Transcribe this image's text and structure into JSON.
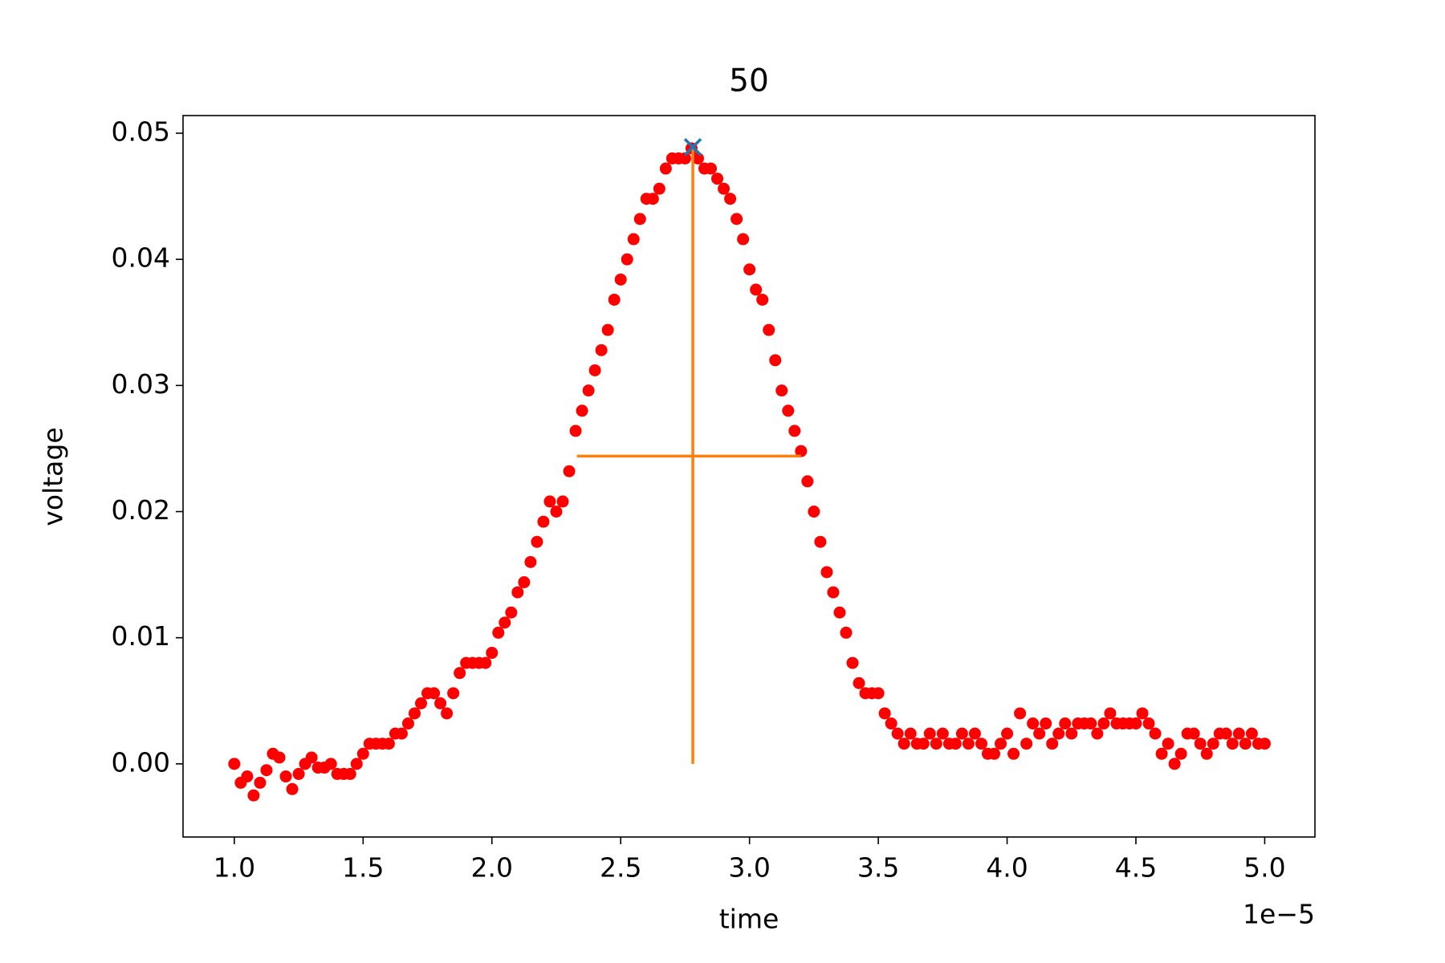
{
  "chart_data": {
    "type": "scatter",
    "title": "50",
    "x_label": "time",
    "y_label": "voltage",
    "x_offset_label": "1e−5",
    "color": "#ff0000",
    "x": [
      1.0,
      1.025,
      1.05,
      1.075,
      1.1,
      1.125,
      1.15,
      1.175,
      1.2,
      1.225,
      1.25,
      1.275,
      1.3,
      1.325,
      1.35,
      1.375,
      1.4,
      1.425,
      1.45,
      1.475,
      1.5,
      1.525,
      1.55,
      1.575,
      1.6,
      1.625,
      1.65,
      1.675,
      1.7,
      1.725,
      1.75,
      1.775,
      1.8,
      1.825,
      1.85,
      1.875,
      1.9,
      1.925,
      1.95,
      1.975,
      2.0,
      2.025,
      2.05,
      2.075,
      2.1,
      2.125,
      2.15,
      2.175,
      2.2,
      2.225,
      2.25,
      2.275,
      2.3,
      2.325,
      2.35,
      2.375,
      2.4,
      2.425,
      2.45,
      2.475,
      2.5,
      2.525,
      2.55,
      2.575,
      2.6,
      2.625,
      2.65,
      2.675,
      2.7,
      2.725,
      2.75,
      2.775,
      2.8,
      2.825,
      2.85,
      2.875,
      2.9,
      2.925,
      2.95,
      2.975,
      3.0,
      3.025,
      3.05,
      3.075,
      3.1,
      3.125,
      3.15,
      3.175,
      3.2,
      3.225,
      3.25,
      3.275,
      3.3,
      3.325,
      3.35,
      3.375,
      3.4,
      3.425,
      3.45,
      3.475,
      3.5,
      3.525,
      3.55,
      3.575,
      3.6,
      3.625,
      3.65,
      3.675,
      3.7,
      3.725,
      3.75,
      3.775,
      3.8,
      3.825,
      3.85,
      3.875,
      3.9,
      3.925,
      3.95,
      3.975,
      4.0,
      4.025,
      4.05,
      4.075,
      4.1,
      4.125,
      4.15,
      4.175,
      4.2,
      4.225,
      4.25,
      4.275,
      4.3,
      4.325,
      4.35,
      4.375,
      4.4,
      4.425,
      4.45,
      4.475,
      4.5,
      4.525,
      4.55,
      4.575,
      4.6,
      4.625,
      4.65,
      4.675,
      4.7,
      4.725,
      4.75,
      4.775,
      4.8,
      4.825,
      4.85,
      4.875,
      4.9,
      4.925,
      4.95,
      4.975,
      5.0
    ],
    "values": [
      0,
      -0.0015,
      -0.001,
      -0.0025,
      -0.0015,
      -0.0005,
      0.0008,
      0.0005,
      -0.001,
      -0.002,
      -0.0008,
      0,
      0.0005,
      -0.0003,
      -0.0003,
      0,
      -0.0008,
      -0.0008,
      -0.0008,
      0,
      0.0008,
      0.0016,
      0.0016,
      0.0016,
      0.0016,
      0.0024,
      0.0024,
      0.0032,
      0.004,
      0.0048,
      0.0056,
      0.0056,
      0.0048,
      0.004,
      0.0056,
      0.0072,
      0.008,
      0.008,
      0.008,
      0.008,
      0.0088,
      0.0104,
      0.0112,
      0.012,
      0.0136,
      0.0144,
      0.016,
      0.0176,
      0.0192,
      0.0208,
      0.02,
      0.0208,
      0.0232,
      0.0264,
      0.028,
      0.0296,
      0.0312,
      0.0328,
      0.0344,
      0.0368,
      0.0384,
      0.04,
      0.0416,
      0.0432,
      0.0448,
      0.0448,
      0.0456,
      0.0472,
      0.048,
      0.048,
      0.048,
      0.0488,
      0.048,
      0.0472,
      0.0472,
      0.0464,
      0.0456,
      0.0448,
      0.0432,
      0.0416,
      0.0392,
      0.0376,
      0.0368,
      0.0344,
      0.032,
      0.0296,
      0.028,
      0.0264,
      0.0248,
      0.0224,
      0.02,
      0.0176,
      0.0152,
      0.0136,
      0.012,
      0.0104,
      0.008,
      0.0064,
      0.0056,
      0.0056,
      0.0056,
      0.004,
      0.0032,
      0.0024,
      0.0016,
      0.0024,
      0.0016,
      0.0016,
      0.0024,
      0.0016,
      0.0024,
      0.0016,
      0.0016,
      0.0024,
      0.0016,
      0.0024,
      0.0016,
      0.0008,
      0.0008,
      0.0016,
      0.0024,
      0.0008,
      0.004,
      0.0016,
      0.0032,
      0.0024,
      0.0032,
      0.0016,
      0.0024,
      0.0032,
      0.0024,
      0.0032,
      0.0032,
      0.0032,
      0.0024,
      0.0032,
      0.004,
      0.0032,
      0.0032,
      0.0032,
      0.0032,
      0.004,
      0.0032,
      0.0024,
      0.0008,
      0.0016,
      0,
      0.0008,
      0.0024,
      0.0024,
      0.0016,
      0.0008,
      0.0016,
      0.0024,
      0.0024,
      0.0016,
      0.0024,
      0.0016,
      0.0024,
      0.0016,
      0.0016
    ],
    "peak": {
      "x": 2.78,
      "y": 0.0489,
      "color": "#1f77b4"
    },
    "vline": {
      "x": 2.78,
      "ymin": 0,
      "ymax": 0.0489,
      "color": "#ff7f0e"
    },
    "hline": {
      "y": 0.0244,
      "xmin": 2.33,
      "xmax": 3.2,
      "color": "#ff7f0e"
    },
    "xlim": [
      0.801,
      5.195
    ],
    "ylim": [
      -0.0058,
      0.0514
    ],
    "xticks": [
      {
        "value": 1,
        "label": "1.0"
      },
      {
        "value": 1.5,
        "label": "1.5"
      },
      {
        "value": 2,
        "label": "2.0"
      },
      {
        "value": 2.5,
        "label": "2.5"
      },
      {
        "value": 3,
        "label": "3.0"
      },
      {
        "value": 3.5,
        "label": "3.5"
      },
      {
        "value": 4,
        "label": "4.0"
      },
      {
        "value": 4.5,
        "label": "4.5"
      },
      {
        "value": 5,
        "label": "5.0"
      }
    ],
    "yticks": [
      {
        "value": 0,
        "label": "0.00"
      },
      {
        "value": 0.01,
        "label": "0.01"
      },
      {
        "value": 0.02,
        "label": "0.02"
      },
      {
        "value": 0.03,
        "label": "0.03"
      },
      {
        "value": 0.04,
        "label": "0.04"
      },
      {
        "value": 0.05,
        "label": "0.05"
      }
    ],
    "grid": false
  }
}
